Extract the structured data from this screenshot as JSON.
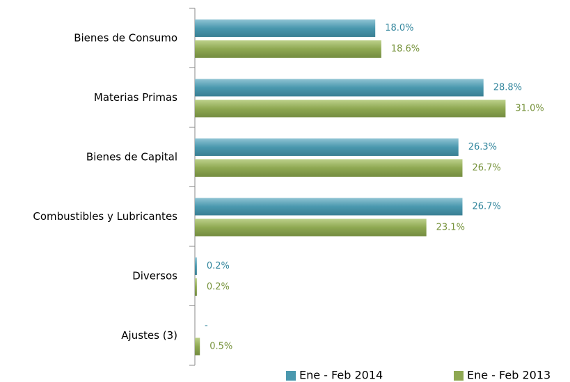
{
  "chart_data": {
    "type": "bar",
    "orientation": "horizontal",
    "categories": [
      "Bienes de Consumo",
      "Materias Primas",
      "Bienes de Capital",
      "Combustibles y Lubricantes",
      "Diversos",
      "Ajustes (3)"
    ],
    "series": [
      {
        "name": "Ene - Feb 2014",
        "color": "#4a98ae",
        "label_color": "#31859c",
        "values": [
          18.0,
          28.8,
          26.3,
          26.7,
          0.2,
          null
        ],
        "value_labels": [
          "18.0%",
          "28.8%",
          "26.3%",
          "26.7%",
          "0.2%",
          "-"
        ]
      },
      {
        "name": "Ene - Feb 2013",
        "color": "#8ea852",
        "label_color": "#77933c",
        "values": [
          18.6,
          31.0,
          26.7,
          23.1,
          0.2,
          0.5
        ],
        "value_labels": [
          "18.6%",
          "31.0%",
          "26.7%",
          "23.1%",
          "0.2%",
          "0.5%"
        ]
      }
    ],
    "xlim": [
      0,
      35
    ],
    "legend": "bottom"
  }
}
